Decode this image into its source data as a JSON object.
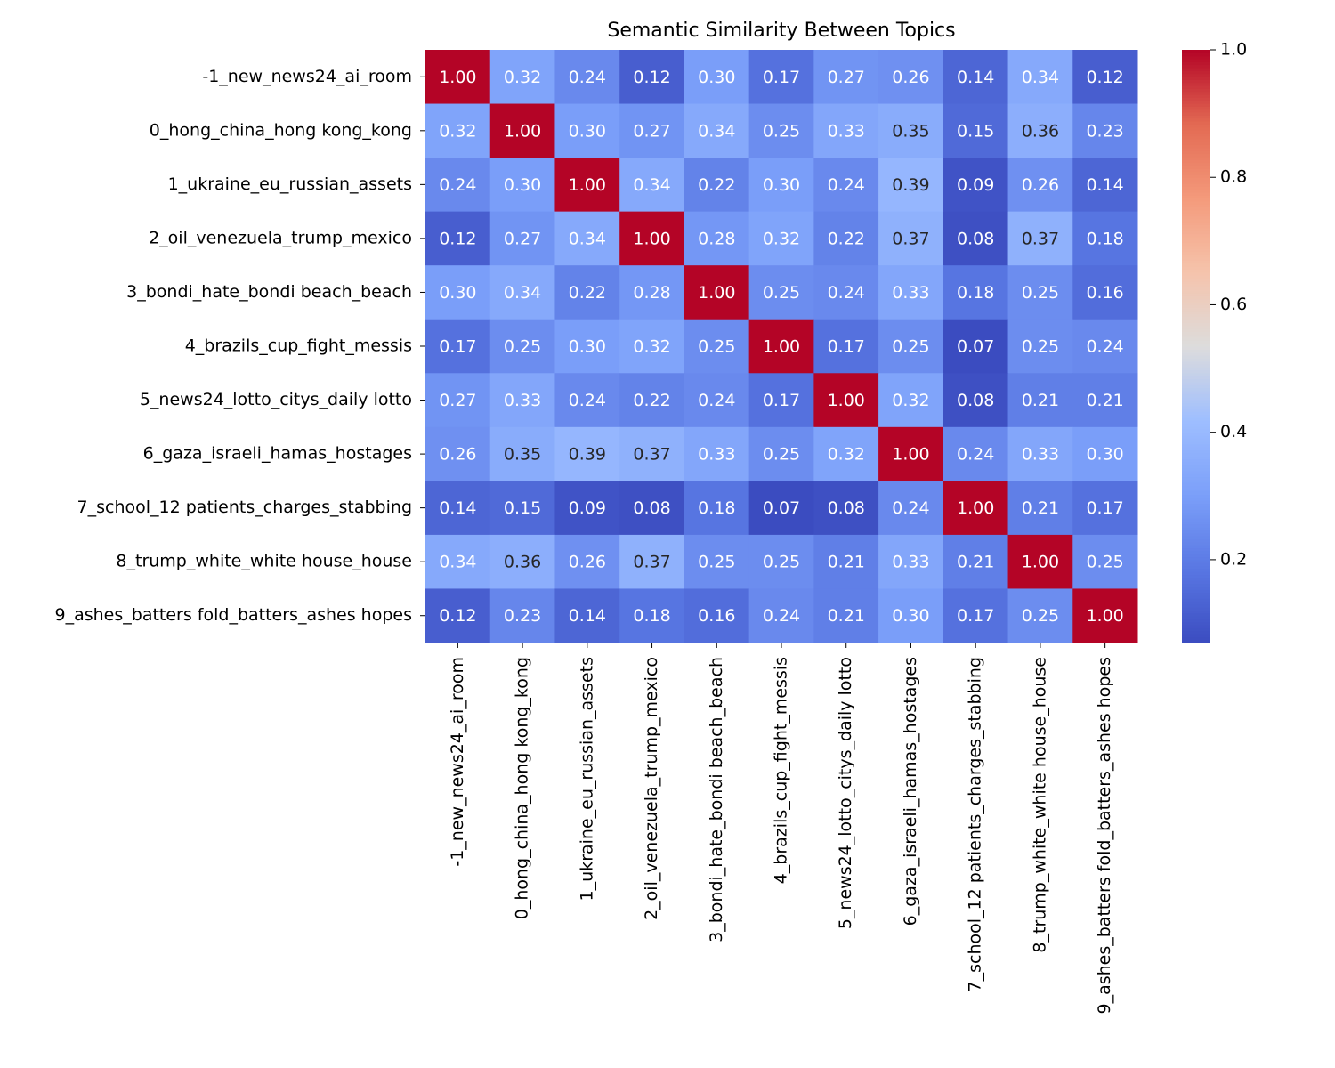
{
  "chart_data": {
    "type": "heatmap",
    "title": "Semantic Similarity Between Topics",
    "categories": [
      "-1_new_news24_ai_room",
      "0_hong_china_hong kong_kong",
      "1_ukraine_eu_russian_assets",
      "2_oil_venezuela_trump_mexico",
      "3_bondi_hate_bondi beach_beach",
      "4_brazils_cup_fight_messis",
      "5_news24_lotto_citys_daily lotto",
      "6_gaza_israeli_hamas_hostages",
      "7_school_12 patients_charges_stabbing",
      "8_trump_white_white house_house",
      "9_ashes_batters fold_batters_ashes hopes"
    ],
    "values": [
      [
        1.0,
        0.32,
        0.24,
        0.12,
        0.3,
        0.17,
        0.27,
        0.26,
        0.14,
        0.34,
        0.12
      ],
      [
        0.32,
        1.0,
        0.3,
        0.27,
        0.34,
        0.25,
        0.33,
        0.35,
        0.15,
        0.36,
        0.23
      ],
      [
        0.24,
        0.3,
        1.0,
        0.34,
        0.22,
        0.3,
        0.24,
        0.39,
        0.09,
        0.26,
        0.14
      ],
      [
        0.12,
        0.27,
        0.34,
        1.0,
        0.28,
        0.32,
        0.22,
        0.37,
        0.08,
        0.37,
        0.18
      ],
      [
        0.3,
        0.34,
        0.22,
        0.28,
        1.0,
        0.25,
        0.24,
        0.33,
        0.18,
        0.25,
        0.16
      ],
      [
        0.17,
        0.25,
        0.3,
        0.32,
        0.25,
        1.0,
        0.17,
        0.25,
        0.07,
        0.25,
        0.24
      ],
      [
        0.27,
        0.33,
        0.24,
        0.22,
        0.24,
        0.17,
        1.0,
        0.32,
        0.08,
        0.21,
        0.21
      ],
      [
        0.26,
        0.35,
        0.39,
        0.37,
        0.33,
        0.25,
        0.32,
        1.0,
        0.24,
        0.33,
        0.3
      ],
      [
        0.14,
        0.15,
        0.09,
        0.08,
        0.18,
        0.07,
        0.08,
        0.24,
        1.0,
        0.21,
        0.17
      ],
      [
        0.34,
        0.36,
        0.26,
        0.37,
        0.25,
        0.25,
        0.21,
        0.33,
        0.21,
        1.0,
        0.25
      ],
      [
        0.12,
        0.23,
        0.14,
        0.18,
        0.16,
        0.24,
        0.21,
        0.3,
        0.17,
        0.25,
        1.0
      ]
    ],
    "value_labels": [
      [
        "1.00",
        "0.32",
        "0.24",
        "0.12",
        "0.30",
        "0.17",
        "0.27",
        "0.26",
        "0.14",
        "0.34",
        "0.12"
      ],
      [
        "0.32",
        "1.00",
        "0.30",
        "0.27",
        "0.34",
        "0.25",
        "0.33",
        "0.35",
        "0.15",
        "0.36",
        "0.23"
      ],
      [
        "0.24",
        "0.30",
        "1.00",
        "0.34",
        "0.22",
        "0.30",
        "0.24",
        "0.39",
        "0.09",
        "0.26",
        "0.14"
      ],
      [
        "0.12",
        "0.27",
        "0.34",
        "1.00",
        "0.28",
        "0.32",
        "0.22",
        "0.37",
        "0.08",
        "0.37",
        "0.18"
      ],
      [
        "0.30",
        "0.34",
        "0.22",
        "0.28",
        "1.00",
        "0.25",
        "0.24",
        "0.33",
        "0.18",
        "0.25",
        "0.16"
      ],
      [
        "0.17",
        "0.25",
        "0.30",
        "0.32",
        "0.25",
        "1.00",
        "0.17",
        "0.25",
        "0.07",
        "0.25",
        "0.24"
      ],
      [
        "0.27",
        "0.33",
        "0.24",
        "0.22",
        "0.24",
        "0.17",
        "1.00",
        "0.32",
        "0.08",
        "0.21",
        "0.21"
      ],
      [
        "0.26",
        "0.35",
        "0.39",
        "0.37",
        "0.33",
        "0.25",
        "0.32",
        "1.00",
        "0.24",
        "0.33",
        "0.30"
      ],
      [
        "0.14",
        "0.15",
        "0.09",
        "0.08",
        "0.18",
        "0.07",
        "0.08",
        "0.24",
        "1.00",
        "0.21",
        "0.17"
      ],
      [
        "0.34",
        "0.36",
        "0.26",
        "0.37",
        "0.25",
        "0.25",
        "0.21",
        "0.33",
        "0.21",
        "1.00",
        "0.25"
      ],
      [
        "0.12",
        "0.23",
        "0.14",
        "0.18",
        "0.16",
        "0.24",
        "0.21",
        "0.30",
        "0.17",
        "0.25",
        "1.00"
      ]
    ],
    "colormap": "coolwarm",
    "zlim": [
      0.07,
      1
    ],
    "zticks": [
      0.2,
      0.4,
      0.6,
      0.8,
      {
        "value": 1,
        "label": "1.0"
      }
    ]
  }
}
